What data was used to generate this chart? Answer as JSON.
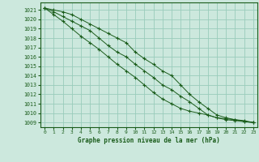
{
  "title": "Graphe pression niveau de la mer (hPa)",
  "background_color": "#cce8dd",
  "grid_color": "#99ccbb",
  "line_color": "#1a5c1a",
  "marker_color": "#1a5c1a",
  "xlim": [
    -0.5,
    23.5
  ],
  "ylim": [
    1008.5,
    1021.8
  ],
  "yticks": [
    1009,
    1010,
    1011,
    1012,
    1013,
    1014,
    1015,
    1016,
    1017,
    1018,
    1019,
    1020,
    1021
  ],
  "xticks": [
    0,
    1,
    2,
    3,
    4,
    5,
    6,
    7,
    8,
    9,
    10,
    11,
    12,
    13,
    14,
    15,
    16,
    17,
    18,
    19,
    20,
    21,
    22,
    23
  ],
  "series": {
    "top": [
      1021.2,
      1021.0,
      1020.8,
      1020.5,
      1020.0,
      1019.5,
      1019.0,
      1018.5,
      1018.0,
      1017.5,
      1016.5,
      1015.8,
      1015.2,
      1014.5,
      1014.0,
      1013.0,
      1012.0,
      1011.2,
      1010.5,
      1009.8,
      1009.5,
      1009.3,
      1009.2,
      1009.0
    ],
    "mid": [
      1021.2,
      1020.8,
      1020.3,
      1019.8,
      1019.3,
      1018.8,
      1018.0,
      1017.2,
      1016.5,
      1016.0,
      1015.2,
      1014.5,
      1013.8,
      1013.0,
      1012.5,
      1011.8,
      1011.2,
      1010.5,
      1009.8,
      1009.5,
      1009.4,
      1009.3,
      1009.1,
      1009.0
    ],
    "bot": [
      1021.2,
      1020.5,
      1019.8,
      1019.0,
      1018.2,
      1017.5,
      1016.8,
      1016.0,
      1015.2,
      1014.5,
      1013.8,
      1013.0,
      1012.2,
      1011.5,
      1011.0,
      1010.5,
      1010.2,
      1010.0,
      1009.8,
      1009.5,
      1009.3,
      1009.2,
      1009.1,
      1009.0
    ]
  }
}
